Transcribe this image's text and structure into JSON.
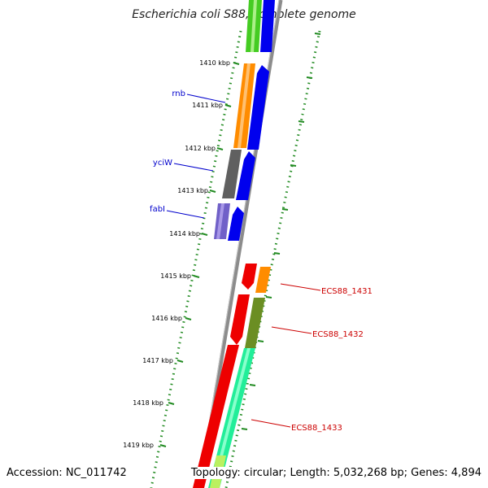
{
  "title": "Escherichia coli S88, complete genome",
  "footer": {
    "accession": "Accession: NC_011742",
    "summary": "Topology: circular; Length: 5,032,268 bp; Genes: 4,894"
  },
  "ticks": [
    {
      "label": "1410 kbp"
    },
    {
      "label": "1411 kbp"
    },
    {
      "label": "1412 kbp"
    },
    {
      "label": "1413 kbp"
    },
    {
      "label": "1414 kbp"
    },
    {
      "label": "1415 kbp"
    },
    {
      "label": "1416 kbp"
    },
    {
      "label": "1417 kbp"
    },
    {
      "label": "1418 kbp"
    },
    {
      "label": "1419 kbp"
    }
  ],
  "gene_labels": [
    {
      "text": "rnb",
      "color": "#0000cc"
    },
    {
      "text": "yciW",
      "color": "#0000cc"
    },
    {
      "text": "fabI",
      "color": "#0000cc"
    },
    {
      "text": "ECS88_1431",
      "color": "#cc0000"
    },
    {
      "text": "ECS88_1432",
      "color": "#cc0000"
    },
    {
      "text": "ECS88_1433",
      "color": "#cc0000"
    }
  ],
  "colors": {
    "backbone": "#8c8c8c",
    "tick_outer": "#228b22",
    "tick_inner": "#228b22",
    "forward_cds": "#0000ee",
    "reverse_cds": "#ee0000",
    "rnb_cog": "#ff8c00",
    "yciW_cog": "#606060",
    "fabI_cog": "#7060c8",
    "top_cog": "#44cc22",
    "ecs1431_cog": "#ff8c00",
    "ecs1432_cog": "#6b8e23",
    "ecs1433_cog": "#22ee99"
  }
}
